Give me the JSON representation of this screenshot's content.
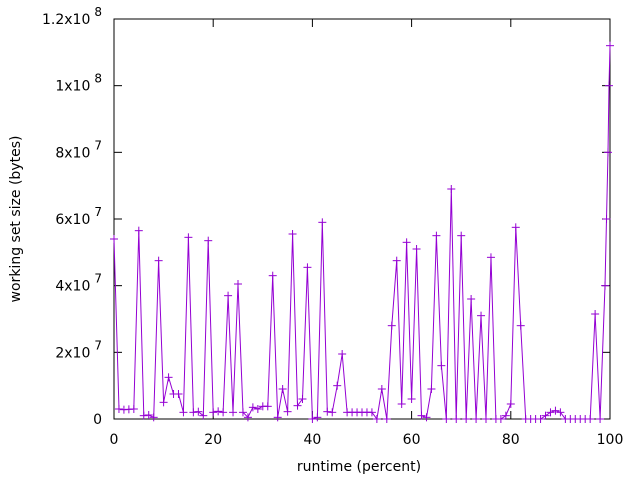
{
  "chart_data": {
    "type": "line",
    "title": "",
    "xlabel": "runtime (percent)",
    "ylabel": "working set size (bytes)",
    "xlim": [
      0,
      100
    ],
    "ylim": [
      0,
      120000000
    ],
    "x_ticks": [
      {
        "value": 0,
        "label": "0"
      },
      {
        "value": 20,
        "label": "20"
      },
      {
        "value": 40,
        "label": "40"
      },
      {
        "value": 60,
        "label": "60"
      },
      {
        "value": 80,
        "label": "80"
      },
      {
        "value": 100,
        "label": "100"
      }
    ],
    "y_ticks": [
      {
        "value": 0,
        "mantissa": "0",
        "exponent": ""
      },
      {
        "value": 20000000,
        "mantissa": "2x10",
        "exponent": "7"
      },
      {
        "value": 40000000,
        "mantissa": "4x10",
        "exponent": "7"
      },
      {
        "value": 60000000,
        "mantissa": "6x10",
        "exponent": "7"
      },
      {
        "value": 80000000,
        "mantissa": "8x10",
        "exponent": "7"
      },
      {
        "value": 100000000,
        "mantissa": "1x10",
        "exponent": "8"
      },
      {
        "value": 120000000,
        "mantissa": "1.2x10",
        "exponent": "8"
      }
    ],
    "grid": false,
    "legend": "none",
    "series": [
      {
        "color": "#9400d3",
        "marker": "plus",
        "points": [
          [
            0,
            54000000
          ],
          [
            1,
            3000000
          ],
          [
            2,
            2800000
          ],
          [
            3,
            2900000
          ],
          [
            4,
            3000000
          ],
          [
            5,
            56500000
          ],
          [
            6,
            1000000
          ],
          [
            7,
            1200000
          ],
          [
            8,
            500000
          ],
          [
            9,
            47500000
          ],
          [
            10,
            5000000
          ],
          [
            11,
            12500000
          ],
          [
            12,
            7500000
          ],
          [
            13,
            7500000
          ],
          [
            14,
            2000000
          ],
          [
            15,
            54500000
          ],
          [
            16,
            2000000
          ],
          [
            17,
            2200000
          ],
          [
            18,
            1000000
          ],
          [
            19,
            53500000
          ],
          [
            20,
            2000000
          ],
          [
            21,
            2300000
          ],
          [
            22,
            2000000
          ],
          [
            23,
            37000000
          ],
          [
            24,
            2000000
          ],
          [
            25,
            40500000
          ],
          [
            26,
            2000000
          ],
          [
            27,
            500000
          ],
          [
            28,
            3500000
          ],
          [
            29,
            3000000
          ],
          [
            30,
            3800000
          ],
          [
            31,
            3800000
          ],
          [
            32,
            43000000
          ],
          [
            33,
            500000
          ],
          [
            34,
            9000000
          ],
          [
            35,
            2200000
          ],
          [
            36,
            55500000
          ],
          [
            37,
            4000000
          ],
          [
            38,
            6000000
          ],
          [
            39,
            45500000
          ],
          [
            40,
            0
          ],
          [
            41,
            500000
          ],
          [
            42,
            59000000
          ],
          [
            43,
            2200000
          ],
          [
            44,
            2000000
          ],
          [
            45,
            10000000
          ],
          [
            46,
            19500000
          ],
          [
            47,
            2000000
          ],
          [
            48,
            2000000
          ],
          [
            49,
            2000000
          ],
          [
            50,
            2000000
          ],
          [
            51,
            2000000
          ],
          [
            52,
            2000000
          ],
          [
            53,
            0
          ],
          [
            54,
            9000000
          ],
          [
            55,
            0
          ],
          [
            56,
            28000000
          ],
          [
            57,
            47500000
          ],
          [
            58,
            4500000
          ],
          [
            59,
            53000000
          ],
          [
            60,
            6000000
          ],
          [
            61,
            51000000
          ],
          [
            62,
            1000000
          ],
          [
            63,
            500000
          ],
          [
            64,
            9000000
          ],
          [
            65,
            55000000
          ],
          [
            66,
            16000000
          ],
          [
            67,
            0
          ],
          [
            68,
            69000000
          ],
          [
            69,
            0
          ],
          [
            70,
            55000000
          ],
          [
            71,
            0
          ],
          [
            72,
            36000000
          ],
          [
            73,
            0
          ],
          [
            74,
            31000000
          ],
          [
            75,
            0
          ],
          [
            76,
            48500000
          ],
          [
            77,
            0
          ],
          [
            78,
            0
          ],
          [
            79,
            1000000
          ],
          [
            80,
            4500000
          ],
          [
            81,
            57500000
          ],
          [
            82,
            28000000
          ],
          [
            83,
            0
          ],
          [
            84,
            0
          ],
          [
            85,
            0
          ],
          [
            86,
            0
          ],
          [
            87,
            1000000
          ],
          [
            88,
            2000000
          ],
          [
            89,
            2500000
          ],
          [
            90,
            2000000
          ],
          [
            91,
            0
          ],
          [
            92,
            0
          ],
          [
            93,
            0
          ],
          [
            94,
            0
          ],
          [
            95,
            0
          ],
          [
            96,
            0
          ],
          [
            97,
            31500000
          ],
          [
            98,
            0
          ],
          [
            99,
            40000000
          ],
          [
            99.3,
            60000000
          ],
          [
            99.6,
            80000000
          ],
          [
            99.8,
            100000000
          ],
          [
            100,
            112000000
          ]
        ]
      }
    ]
  }
}
